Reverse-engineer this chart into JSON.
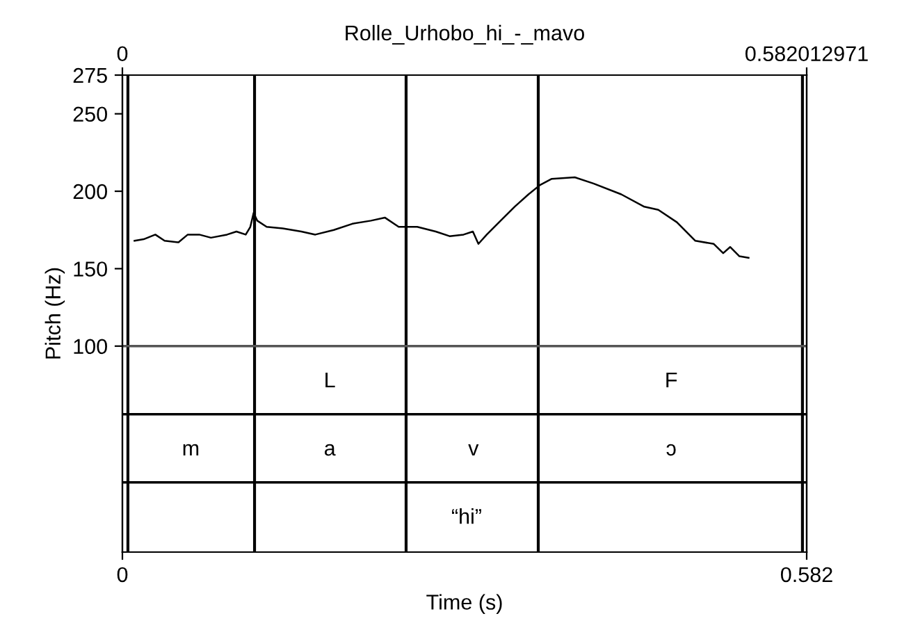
{
  "chart_data": {
    "type": "line",
    "title": "Rolle_Urhobo_hi_-_mavo",
    "xlabel": "Time (s)",
    "ylabel": "Pitch (Hz)",
    "x2label": null,
    "series": [
      {
        "color": "#000000",
        "x": [
          0.0103,
          0.0181,
          0.028,
          0.0359,
          0.0477,
          0.0556,
          0.0654,
          0.0753,
          0.089,
          0.097,
          0.1049,
          0.1088,
          0.1116,
          0.1147,
          0.1227,
          0.1364,
          0.1522,
          0.1641,
          0.1798,
          0.1956,
          0.2114,
          0.2232,
          0.235,
          0.2508,
          0.2665,
          0.2783,
          0.2902,
          0.2981,
          0.3028,
          0.3099,
          0.3217,
          0.3336,
          0.3454,
          0.3552,
          0.3652,
          0.3848,
          0.4006,
          0.4243,
          0.4439,
          0.4558,
          0.4716,
          0.4873,
          0.503,
          0.511,
          0.5169,
          0.5248,
          0.5326
        ],
        "values": [
          168,
          169,
          172,
          168,
          167,
          172,
          172,
          170,
          172,
          174,
          172,
          177,
          186,
          181,
          177,
          176,
          174,
          172,
          175,
          179,
          181,
          183,
          177,
          177,
          174,
          171,
          172,
          174,
          166,
          172,
          181,
          190,
          198,
          204,
          208,
          209,
          205,
          198,
          190,
          188,
          180,
          168,
          166,
          160,
          164,
          158,
          157
        ]
      }
    ],
    "xlim": [
      0,
      0.582012971
    ],
    "xticks": [
      0,
      {
        "value": 0.582012971,
        "label": "0.582"
      }
    ],
    "x2lim": [
      0,
      0.582012971
    ],
    "x2ticks": [
      0,
      0.582012971
    ],
    "ylim": [
      -33,
      275
    ],
    "yticks": [
      100,
      150,
      200,
      250,
      275
    ],
    "ref_lines": [
      {
        "axis": "x",
        "value": 0.0047,
        "color": "#000000"
      },
      {
        "axis": "x",
        "value": 0.1124,
        "color": "#000000"
      },
      {
        "axis": "x",
        "value": 0.2413,
        "color": "#000000"
      },
      {
        "axis": "x",
        "value": 0.3537,
        "color": "#000000"
      },
      {
        "axis": "x",
        "value": 0.5784,
        "color": "#000000"
      },
      {
        "axis": "y",
        "value": 100,
        "color": "#555555"
      },
      {
        "axis": "y",
        "value": 56,
        "color": "#000000"
      },
      {
        "axis": "y",
        "value": 12,
        "color": "#000000"
      }
    ],
    "annotations": [
      "L",
      "F",
      "m",
      "a",
      "v",
      "ɔ",
      "“hi”"
    ],
    "grid": false,
    "legend": false,
    "line_style": "solid",
    "marker": "none"
  }
}
